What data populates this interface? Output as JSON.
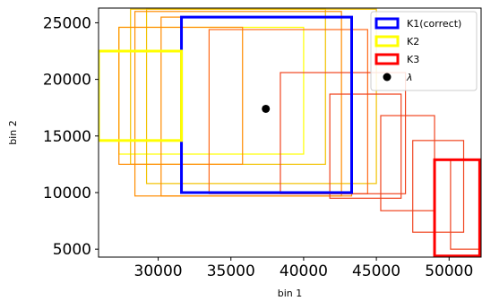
{
  "chart_data": {
    "type": "rectangles",
    "xlabel": "bin 1",
    "ylabel": "bin 2",
    "xlim": [
      25900,
      52200
    ],
    "ylim": [
      4300,
      26300
    ],
    "x_ticks": [
      30000,
      35000,
      40000,
      45000,
      50000
    ],
    "y_ticks": [
      5000,
      10000,
      15000,
      20000,
      25000
    ],
    "x_tick_labels": [
      "30000",
      "35000",
      "40000",
      "45000",
      "50000"
    ],
    "y_tick_labels": [
      "5000",
      "10000",
      "15000",
      "20000",
      "25000"
    ],
    "colors": {
      "K1": "#0000ff",
      "K2": "#ffff00",
      "K3": "#ff0000",
      "gold": "#f2c200",
      "orange": "#ff8c00",
      "dark_orange": "#ff6a1a",
      "red_orange": "#f0441f",
      "point": "#000000"
    },
    "legend": {
      "placement": "top-right",
      "entries": [
        {
          "label": "K1(correct)",
          "color_key": "K1",
          "kind": "rect"
        },
        {
          "label": "K2",
          "color_key": "K2",
          "kind": "rect"
        },
        {
          "label": "K3",
          "color_key": "K3",
          "kind": "rect"
        },
        {
          "label": "λ",
          "color_key": "point",
          "kind": "point"
        }
      ]
    },
    "point": {
      "x": 37400,
      "y": 17400
    },
    "rectangles": [
      {
        "x0": 27300,
        "x1": 40000,
        "y0": 13400,
        "y1": 24600,
        "color_key": "K2",
        "width": 1.2
      },
      {
        "x0": 28100,
        "x1": 41500,
        "y0": 12500,
        "y1": 26200,
        "color_key": "gold",
        "width": 1.2
      },
      {
        "x0": 29200,
        "x1": 45000,
        "y0": 10800,
        "y1": 26200,
        "color_key": "gold",
        "width": 1.2
      },
      {
        "x0": 27300,
        "x1": 35800,
        "y0": 12500,
        "y1": 24600,
        "color_key": "orange",
        "width": 1.2
      },
      {
        "x0": 28400,
        "x1": 42600,
        "y0": 9700,
        "y1": 26000,
        "color_key": "orange",
        "width": 1.2
      },
      {
        "x0": 30200,
        "x1": 43300,
        "y0": 9700,
        "y1": 25500,
        "color_key": "orange",
        "width": 1.2
      },
      {
        "x0": 33500,
        "x1": 44400,
        "y0": 9900,
        "y1": 24400,
        "color_key": "dark_orange",
        "width": 1.2
      },
      {
        "x0": 38400,
        "x1": 47000,
        "y0": 9900,
        "y1": 20600,
        "color_key": "red_orange",
        "width": 1.2
      },
      {
        "x0": 41800,
        "x1": 46700,
        "y0": 9500,
        "y1": 18700,
        "color_key": "red_orange",
        "width": 1.2
      },
      {
        "x0": 45300,
        "x1": 49000,
        "y0": 8400,
        "y1": 16800,
        "color_key": "red_orange",
        "width": 1.2
      },
      {
        "x0": 47500,
        "x1": 51000,
        "y0": 6500,
        "y1": 14600,
        "color_key": "red_orange",
        "width": 1.2
      },
      {
        "x0": 50100,
        "x1": 52200,
        "y0": 5000,
        "y1": 12900,
        "color_key": "red_orange",
        "width": 1.2
      },
      {
        "x0": 31600,
        "x1": 43300,
        "y0": 10000,
        "y1": 25500,
        "color_key": "K1",
        "width": 3
      },
      {
        "x0": 25900,
        "x1": 31600,
        "y0": 14600,
        "y1": 22500,
        "color_key": "K2",
        "width": 3
      },
      {
        "x0": 49000,
        "x1": 52100,
        "y0": 4400,
        "y1": 12900,
        "color_key": "K3",
        "width": 3
      }
    ]
  }
}
